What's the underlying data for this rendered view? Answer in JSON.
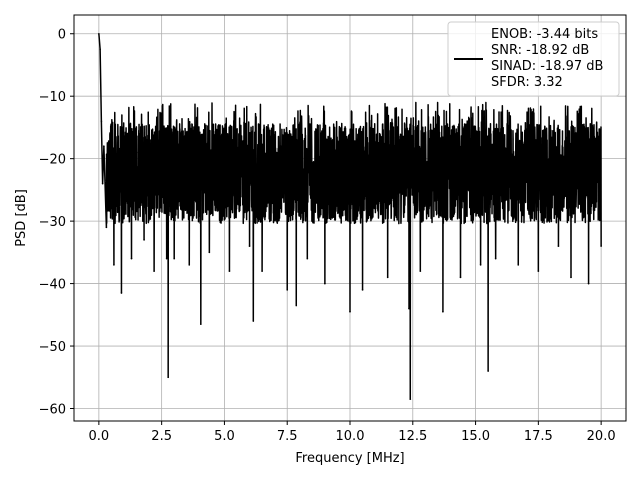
{
  "chart_data": {
    "type": "line",
    "title": "",
    "xlabel": "Frequency [MHz]",
    "ylabel": "PSD [dB]",
    "xlim": [
      -0.99,
      20.99
    ],
    "ylim": [
      -62,
      3
    ],
    "x_ticks": [
      0.0,
      2.5,
      5.0,
      7.5,
      10.0,
      12.5,
      15.0,
      17.5,
      20.0
    ],
    "x_tick_labels": [
      "0.0",
      "2.5",
      "5.0",
      "7.5",
      "10.0",
      "12.5",
      "15.0",
      "17.5",
      "20.0"
    ],
    "y_ticks": [
      0,
      -10,
      -20,
      -30,
      -40,
      -50,
      -60
    ],
    "y_tick_labels": [
      "0",
      "−10",
      "−20",
      "−30",
      "−40",
      "−50",
      "−60"
    ],
    "grid": true,
    "legend_position": "upper right",
    "legend_entries": [
      "ENOB: -3.44 bits",
      "SNR: -18.92 dB",
      "SINAD: -18.97 dB",
      "SFDR: 3.32"
    ],
    "line_color": "#000000",
    "series": [
      {
        "name": "ENOB: -3.44 bits\nSNR: -18.92 dB\nSINAD: -18.97 dB\nSFDR: 3.32",
        "x": [
          0.0,
          0.05,
          0.1,
          0.15,
          0.2,
          0.3,
          0.4,
          0.6,
          0.75,
          0.9,
          1.1,
          1.3,
          1.5,
          1.8,
          2.0,
          2.2,
          2.5,
          2.7,
          2.76,
          2.8,
          3.0,
          3.3,
          3.6,
          4.0,
          4.06,
          4.1,
          4.4,
          4.8,
          5.2,
          5.6,
          6.0,
          6.15,
          6.2,
          6.5,
          7.0,
          7.5,
          7.86,
          7.9,
          8.3,
          8.7,
          9.0,
          9.5,
          10.0,
          10.2,
          10.5,
          11.0,
          11.5,
          12.0,
          12.35,
          12.4,
          12.45,
          12.8,
          13.3,
          13.7,
          14.0,
          14.4,
          14.8,
          15.2,
          15.5,
          15.55,
          15.8,
          16.2,
          16.7,
          17.2,
          17.5,
          17.9,
          18.3,
          18.8,
          19.1,
          19.5,
          20.0
        ],
        "y": [
          0,
          -2.5,
          -14,
          -24,
          -18,
          -31,
          -22,
          -37,
          -20,
          -41.5,
          -25,
          -36,
          -19,
          -33,
          -23,
          -38,
          -19,
          -36,
          -55,
          -22,
          -36,
          -21,
          -37,
          -24,
          -46.5,
          -20,
          -35,
          -22,
          -38,
          -21,
          -34,
          -46,
          -24,
          -38,
          -22,
          -41,
          -43.5,
          -23,
          -36,
          -21,
          -40,
          -22,
          -44.5,
          -26,
          -41,
          -22,
          -39,
          -24,
          -44,
          -58.5,
          -23,
          -38,
          -21,
          -44.5,
          -23,
          -39,
          -22,
          -37,
          -54,
          -24,
          -36,
          -22,
          -37,
          -21,
          -38,
          -24,
          -34,
          -39,
          -23,
          -40,
          -34
        ]
      }
    ]
  }
}
